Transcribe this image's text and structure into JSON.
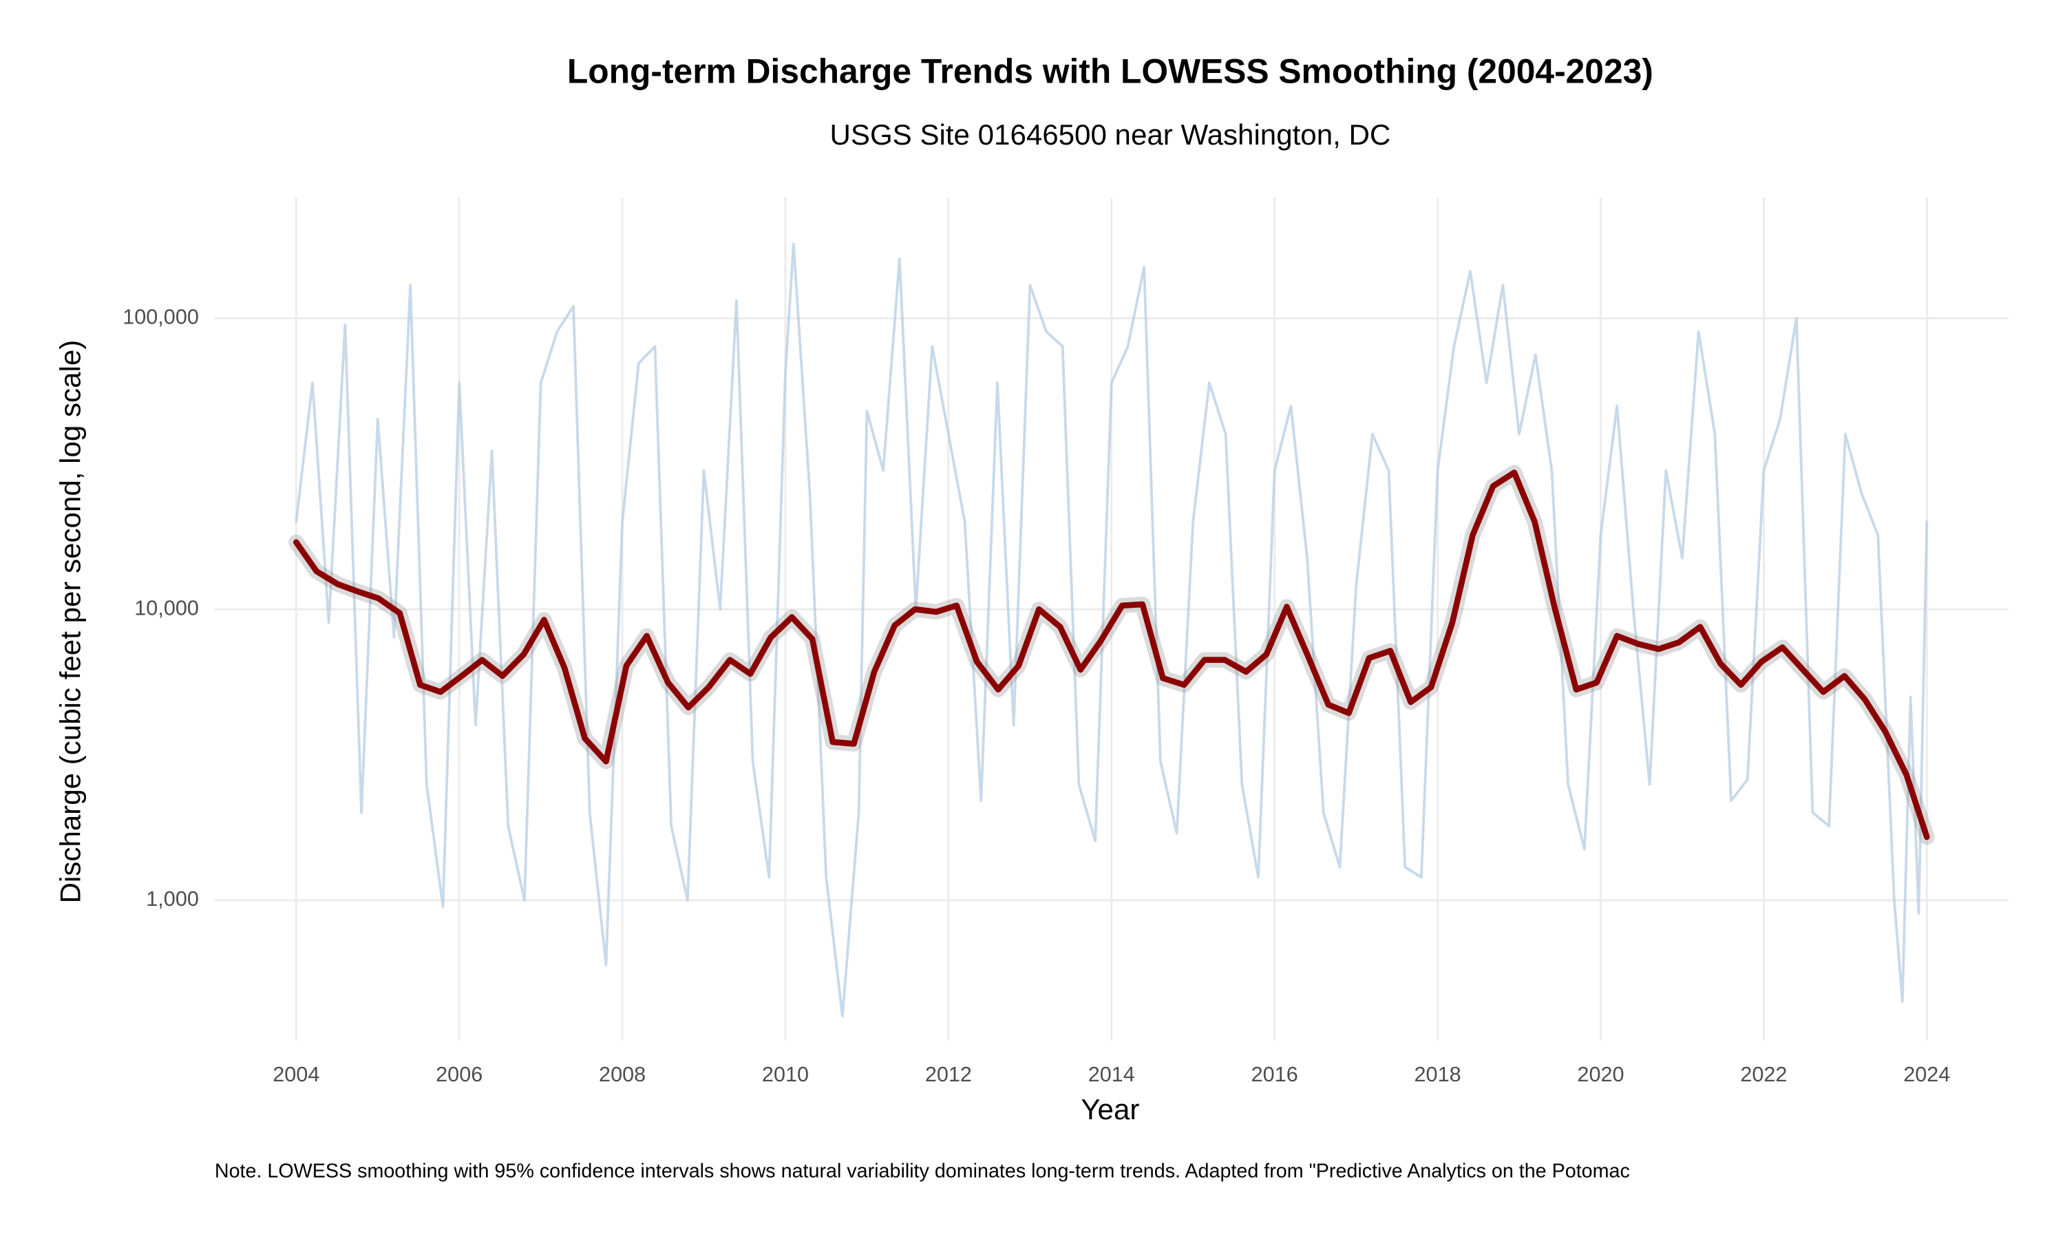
{
  "chart_data": {
    "type": "line",
    "title": "Long-term Discharge Trends with LOWESS Smoothing (2004-2023)",
    "subtitle": "USGS Site 01646500 near Washington, DC",
    "x_label": "Year",
    "y_label": "Discharge (cubic feet per second, log scale)",
    "note": "Note. LOWESS smoothing with 95% confidence intervals shows natural variability dominates long-term trends. Adapted from \"Predictive Analytics on the Potomac",
    "log_y": true,
    "grid": true,
    "xlim": [
      2003.0,
      2025.0
    ],
    "xticks": [
      2004,
      2006,
      2008,
      2010,
      2012,
      2014,
      2016,
      2018,
      2020,
      2022,
      2024
    ],
    "ylim": [
      330,
      260000
    ],
    "yticks": [
      {
        "value": 1000,
        "label": "1,000"
      },
      {
        "value": 10000,
        "label": "10,000"
      },
      {
        "value": 100000,
        "label": "100,000"
      }
    ],
    "series": [
      {
        "color": "#b5cce2",
        "width": 2,
        "x": [
          2004.0,
          2004.2,
          2004.4,
          2004.6,
          2004.8,
          2005.0,
          2005.2,
          2005.4,
          2005.6,
          2005.8,
          2006.0,
          2006.2,
          2006.4,
          2006.6,
          2006.8,
          2007.0,
          2007.2,
          2007.4,
          2007.6,
          2007.8,
          2008.0,
          2008.2,
          2008.4,
          2008.6,
          2008.8,
          2009.0,
          2009.2,
          2009.4,
          2009.6,
          2009.8,
          2010.0,
          2010.1,
          2010.3,
          2010.5,
          2010.7,
          2010.9,
          2011.0,
          2011.2,
          2011.4,
          2011.6,
          2011.8,
          2012.0,
          2012.2,
          2012.4,
          2012.6,
          2012.8,
          2013.0,
          2013.2,
          2013.4,
          2013.6,
          2013.8,
          2014.0,
          2014.2,
          2014.4,
          2014.6,
          2014.8,
          2015.0,
          2015.2,
          2015.4,
          2015.6,
          2015.8,
          2016.0,
          2016.2,
          2016.4,
          2016.6,
          2016.8,
          2017.0,
          2017.2,
          2017.4,
          2017.6,
          2017.8,
          2018.0,
          2018.2,
          2018.4,
          2018.6,
          2018.8,
          2019.0,
          2019.2,
          2019.4,
          2019.6,
          2019.8,
          2020.0,
          2020.2,
          2020.4,
          2020.6,
          2020.8,
          2021.0,
          2021.2,
          2021.4,
          2021.6,
          2021.8,
          2022.0,
          2022.2,
          2022.4,
          2022.6,
          2022.8,
          2023.0,
          2023.2,
          2023.4,
          2023.6,
          2023.7,
          2023.8,
          2023.9,
          2024.0
        ],
        "values": [
          20000,
          60000,
          9000,
          95000,
          2000,
          45000,
          8000,
          130000,
          2500,
          950,
          60000,
          4000,
          35000,
          1800,
          1000,
          60000,
          90000,
          110000,
          2000,
          600,
          20000,
          70000,
          80000,
          1800,
          1000,
          30000,
          10000,
          115000,
          3000,
          1200,
          65000,
          180000,
          25000,
          1200,
          400,
          2000,
          48000,
          30000,
          160000,
          10000,
          80000,
          40000,
          20000,
          2200,
          60000,
          4000,
          130000,
          90000,
          80000,
          2500,
          1600,
          60000,
          80000,
          150000,
          3000,
          1700,
          20000,
          60000,
          40000,
          2500,
          1200,
          30000,
          50000,
          15000,
          2000,
          1300,
          12000,
          40000,
          30000,
          1300,
          1200,
          30000,
          80000,
          145000,
          60000,
          130000,
          40000,
          75000,
          30000,
          2500,
          1500,
          18000,
          50000,
          10000,
          2500,
          30000,
          15000,
          90000,
          40000,
          2200,
          2600,
          30000,
          45000,
          100000,
          2000,
          1800,
          40000,
          25000,
          18000,
          1000,
          450,
          5000,
          900,
          20000
        ]
      },
      {
        "color": "#8b0000",
        "width": 4.5,
        "x": [
          2004.0,
          2004.25,
          2004.51,
          2004.76,
          2005.01,
          2005.27,
          2005.52,
          2005.77,
          2006.03,
          2006.28,
          2006.53,
          2006.79,
          2007.04,
          2007.29,
          2007.54,
          2007.8,
          2008.05,
          2008.3,
          2008.56,
          2008.81,
          2009.06,
          2009.32,
          2009.57,
          2009.82,
          2010.08,
          2010.33,
          2010.58,
          2010.84,
          2011.09,
          2011.34,
          2011.59,
          2011.85,
          2012.1,
          2012.35,
          2012.61,
          2012.86,
          2013.11,
          2013.37,
          2013.62,
          2013.87,
          2014.13,
          2014.38,
          2014.63,
          2014.89,
          2015.14,
          2015.39,
          2015.65,
          2015.9,
          2016.15,
          2016.41,
          2016.66,
          2016.91,
          2017.16,
          2017.42,
          2017.67,
          2017.92,
          2018.18,
          2018.43,
          2018.68,
          2018.94,
          2019.19,
          2019.44,
          2019.7,
          2019.95,
          2020.2,
          2020.46,
          2020.71,
          2020.96,
          2021.22,
          2021.47,
          2021.72,
          2021.97,
          2022.23,
          2022.48,
          2022.73,
          2022.99,
          2023.24,
          2023.49,
          2023.75,
          2024.0
        ],
        "values": [
          17000,
          13500,
          12200,
          11500,
          10900,
          9700,
          5500,
          5200,
          5900,
          6700,
          5900,
          7000,
          9200,
          6300,
          3600,
          3000,
          6400,
          8100,
          5600,
          4600,
          5400,
          6700,
          6000,
          8000,
          9400,
          7900,
          3500,
          3450,
          6100,
          8800,
          10000,
          9800,
          10300,
          6600,
          5300,
          6400,
          10000,
          8700,
          6200,
          7800,
          10300,
          10400,
          5800,
          5500,
          6700,
          6700,
          6100,
          7000,
          10200,
          6900,
          4700,
          4400,
          6800,
          7200,
          4800,
          5400,
          9000,
          18000,
          26500,
          29500,
          20000,
          10000,
          5300,
          5600,
          8100,
          7600,
          7300,
          7700,
          8700,
          6500,
          5500,
          6600,
          7400,
          6200,
          5200,
          5900,
          4900,
          3800,
          2700,
          1650
        ]
      }
    ]
  }
}
